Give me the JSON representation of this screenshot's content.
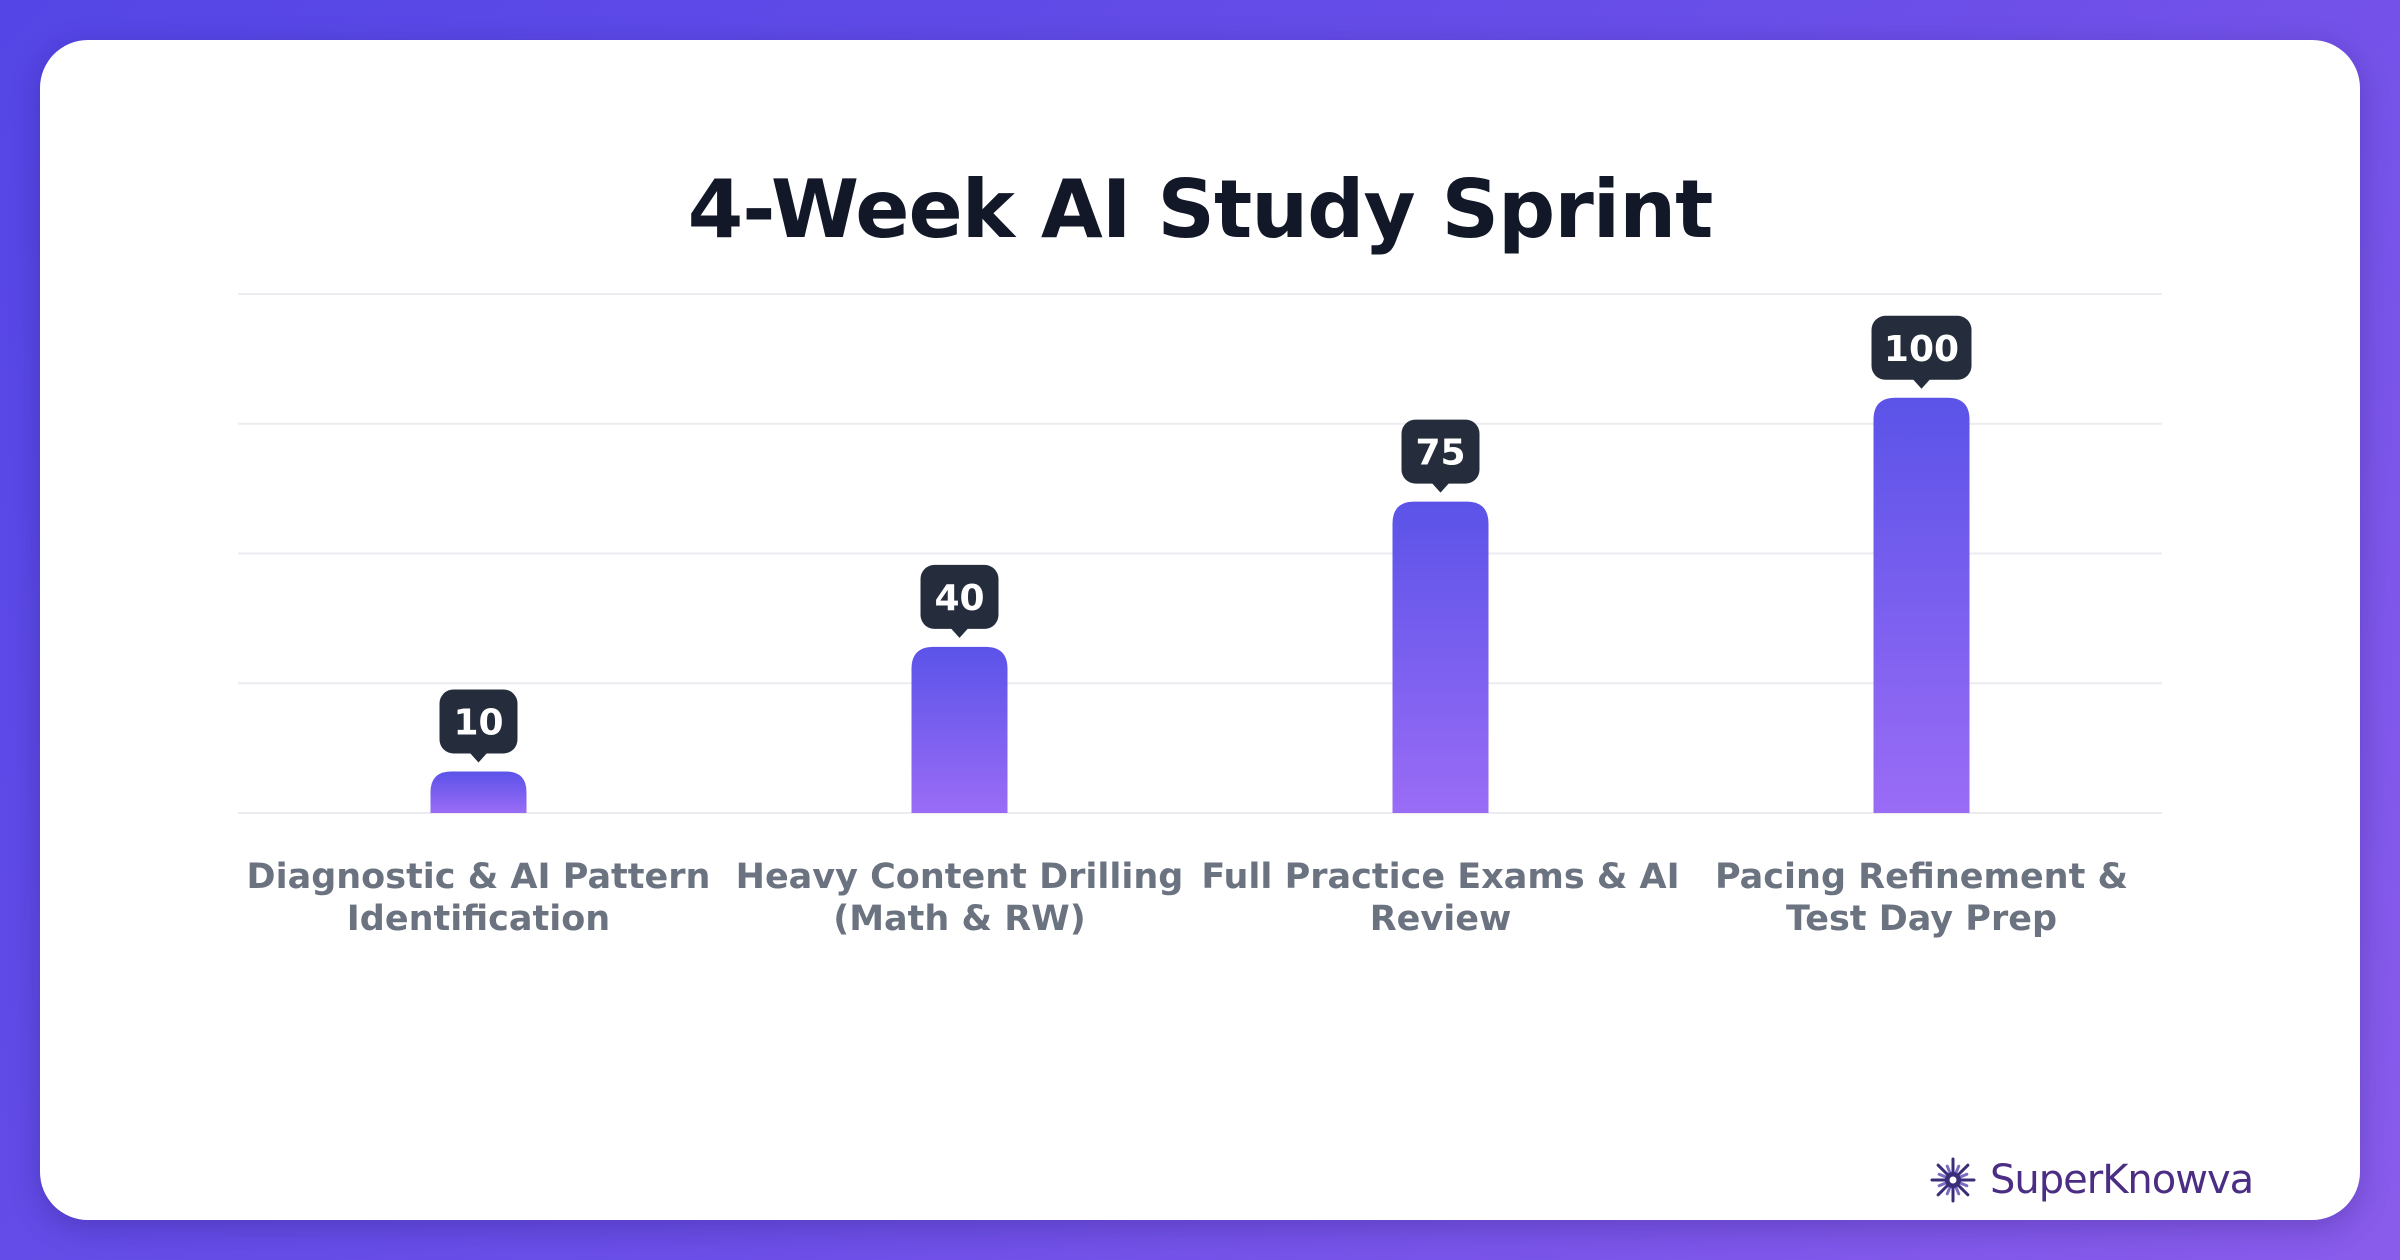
{
  "chart_data": {
    "type": "bar",
    "title": "4-Week AI Study Sprint",
    "categories": [
      [
        "Diagnostic & AI Pattern",
        "Identification"
      ],
      [
        "Heavy Content Drilling",
        "(Math & RW)"
      ],
      [
        "Full Practice Exams & AI",
        "Review"
      ],
      [
        "Pacing Refinement &",
        "Test Day Prep"
      ]
    ],
    "values": [
      10,
      40,
      75,
      100
    ],
    "ylim": [
      0,
      125
    ],
    "grid": true,
    "bar_gradient": [
      "#5b53e8",
      "#9a6cf6"
    ],
    "label_background": "#252c3c"
  },
  "brand": {
    "name": "SuperKnowva",
    "icon": "sunburst-icon",
    "color": "#4b2e83"
  }
}
